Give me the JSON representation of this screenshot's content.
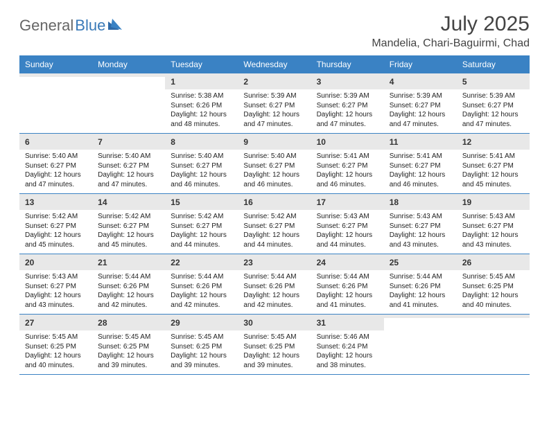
{
  "logo": {
    "text1": "General",
    "text2": "Blue"
  },
  "title": "July 2025",
  "location": "Mandelia, Chari-Baguirmi, Chad",
  "colors": {
    "header_bg": "#3a82c4",
    "header_text": "#ffffff",
    "daynum_bg": "#e8e8e8",
    "border": "#3a82c4",
    "logo_gray": "#666666",
    "logo_blue": "#3a7ab8",
    "title_color": "#444444"
  },
  "weekdays": [
    "Sunday",
    "Monday",
    "Tuesday",
    "Wednesday",
    "Thursday",
    "Friday",
    "Saturday"
  ],
  "weeks": [
    [
      {
        "empty": true
      },
      {
        "empty": true
      },
      {
        "num": "1",
        "sunrise": "Sunrise: 5:38 AM",
        "sunset": "Sunset: 6:26 PM",
        "daylight1": "Daylight: 12 hours",
        "daylight2": "and 48 minutes."
      },
      {
        "num": "2",
        "sunrise": "Sunrise: 5:39 AM",
        "sunset": "Sunset: 6:27 PM",
        "daylight1": "Daylight: 12 hours",
        "daylight2": "and 47 minutes."
      },
      {
        "num": "3",
        "sunrise": "Sunrise: 5:39 AM",
        "sunset": "Sunset: 6:27 PM",
        "daylight1": "Daylight: 12 hours",
        "daylight2": "and 47 minutes."
      },
      {
        "num": "4",
        "sunrise": "Sunrise: 5:39 AM",
        "sunset": "Sunset: 6:27 PM",
        "daylight1": "Daylight: 12 hours",
        "daylight2": "and 47 minutes."
      },
      {
        "num": "5",
        "sunrise": "Sunrise: 5:39 AM",
        "sunset": "Sunset: 6:27 PM",
        "daylight1": "Daylight: 12 hours",
        "daylight2": "and 47 minutes."
      }
    ],
    [
      {
        "num": "6",
        "sunrise": "Sunrise: 5:40 AM",
        "sunset": "Sunset: 6:27 PM",
        "daylight1": "Daylight: 12 hours",
        "daylight2": "and 47 minutes."
      },
      {
        "num": "7",
        "sunrise": "Sunrise: 5:40 AM",
        "sunset": "Sunset: 6:27 PM",
        "daylight1": "Daylight: 12 hours",
        "daylight2": "and 47 minutes."
      },
      {
        "num": "8",
        "sunrise": "Sunrise: 5:40 AM",
        "sunset": "Sunset: 6:27 PM",
        "daylight1": "Daylight: 12 hours",
        "daylight2": "and 46 minutes."
      },
      {
        "num": "9",
        "sunrise": "Sunrise: 5:40 AM",
        "sunset": "Sunset: 6:27 PM",
        "daylight1": "Daylight: 12 hours",
        "daylight2": "and 46 minutes."
      },
      {
        "num": "10",
        "sunrise": "Sunrise: 5:41 AM",
        "sunset": "Sunset: 6:27 PM",
        "daylight1": "Daylight: 12 hours",
        "daylight2": "and 46 minutes."
      },
      {
        "num": "11",
        "sunrise": "Sunrise: 5:41 AM",
        "sunset": "Sunset: 6:27 PM",
        "daylight1": "Daylight: 12 hours",
        "daylight2": "and 46 minutes."
      },
      {
        "num": "12",
        "sunrise": "Sunrise: 5:41 AM",
        "sunset": "Sunset: 6:27 PM",
        "daylight1": "Daylight: 12 hours",
        "daylight2": "and 45 minutes."
      }
    ],
    [
      {
        "num": "13",
        "sunrise": "Sunrise: 5:42 AM",
        "sunset": "Sunset: 6:27 PM",
        "daylight1": "Daylight: 12 hours",
        "daylight2": "and 45 minutes."
      },
      {
        "num": "14",
        "sunrise": "Sunrise: 5:42 AM",
        "sunset": "Sunset: 6:27 PM",
        "daylight1": "Daylight: 12 hours",
        "daylight2": "and 45 minutes."
      },
      {
        "num": "15",
        "sunrise": "Sunrise: 5:42 AM",
        "sunset": "Sunset: 6:27 PM",
        "daylight1": "Daylight: 12 hours",
        "daylight2": "and 44 minutes."
      },
      {
        "num": "16",
        "sunrise": "Sunrise: 5:42 AM",
        "sunset": "Sunset: 6:27 PM",
        "daylight1": "Daylight: 12 hours",
        "daylight2": "and 44 minutes."
      },
      {
        "num": "17",
        "sunrise": "Sunrise: 5:43 AM",
        "sunset": "Sunset: 6:27 PM",
        "daylight1": "Daylight: 12 hours",
        "daylight2": "and 44 minutes."
      },
      {
        "num": "18",
        "sunrise": "Sunrise: 5:43 AM",
        "sunset": "Sunset: 6:27 PM",
        "daylight1": "Daylight: 12 hours",
        "daylight2": "and 43 minutes."
      },
      {
        "num": "19",
        "sunrise": "Sunrise: 5:43 AM",
        "sunset": "Sunset: 6:27 PM",
        "daylight1": "Daylight: 12 hours",
        "daylight2": "and 43 minutes."
      }
    ],
    [
      {
        "num": "20",
        "sunrise": "Sunrise: 5:43 AM",
        "sunset": "Sunset: 6:27 PM",
        "daylight1": "Daylight: 12 hours",
        "daylight2": "and 43 minutes."
      },
      {
        "num": "21",
        "sunrise": "Sunrise: 5:44 AM",
        "sunset": "Sunset: 6:26 PM",
        "daylight1": "Daylight: 12 hours",
        "daylight2": "and 42 minutes."
      },
      {
        "num": "22",
        "sunrise": "Sunrise: 5:44 AM",
        "sunset": "Sunset: 6:26 PM",
        "daylight1": "Daylight: 12 hours",
        "daylight2": "and 42 minutes."
      },
      {
        "num": "23",
        "sunrise": "Sunrise: 5:44 AM",
        "sunset": "Sunset: 6:26 PM",
        "daylight1": "Daylight: 12 hours",
        "daylight2": "and 42 minutes."
      },
      {
        "num": "24",
        "sunrise": "Sunrise: 5:44 AM",
        "sunset": "Sunset: 6:26 PM",
        "daylight1": "Daylight: 12 hours",
        "daylight2": "and 41 minutes."
      },
      {
        "num": "25",
        "sunrise": "Sunrise: 5:44 AM",
        "sunset": "Sunset: 6:26 PM",
        "daylight1": "Daylight: 12 hours",
        "daylight2": "and 41 minutes."
      },
      {
        "num": "26",
        "sunrise": "Sunrise: 5:45 AM",
        "sunset": "Sunset: 6:25 PM",
        "daylight1": "Daylight: 12 hours",
        "daylight2": "and 40 minutes."
      }
    ],
    [
      {
        "num": "27",
        "sunrise": "Sunrise: 5:45 AM",
        "sunset": "Sunset: 6:25 PM",
        "daylight1": "Daylight: 12 hours",
        "daylight2": "and 40 minutes."
      },
      {
        "num": "28",
        "sunrise": "Sunrise: 5:45 AM",
        "sunset": "Sunset: 6:25 PM",
        "daylight1": "Daylight: 12 hours",
        "daylight2": "and 39 minutes."
      },
      {
        "num": "29",
        "sunrise": "Sunrise: 5:45 AM",
        "sunset": "Sunset: 6:25 PM",
        "daylight1": "Daylight: 12 hours",
        "daylight2": "and 39 minutes."
      },
      {
        "num": "30",
        "sunrise": "Sunrise: 5:45 AM",
        "sunset": "Sunset: 6:25 PM",
        "daylight1": "Daylight: 12 hours",
        "daylight2": "and 39 minutes."
      },
      {
        "num": "31",
        "sunrise": "Sunrise: 5:46 AM",
        "sunset": "Sunset: 6:24 PM",
        "daylight1": "Daylight: 12 hours",
        "daylight2": "and 38 minutes."
      },
      {
        "empty": true
      },
      {
        "empty": true
      }
    ]
  ]
}
